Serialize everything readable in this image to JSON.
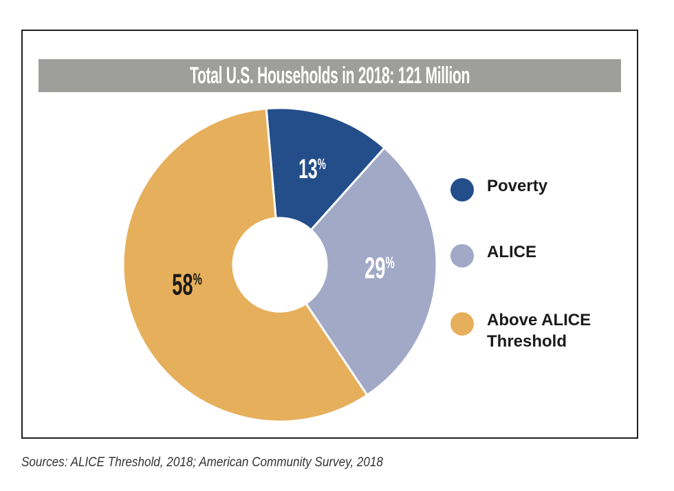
{
  "chart_data": {
    "type": "pie",
    "title": "Total U.S. Households in 2018: 121 Million",
    "donut": true,
    "categories": [
      "Poverty",
      "ALICE",
      "Above ALICE Threshold"
    ],
    "values": [
      13,
      29,
      58
    ],
    "value_labels": [
      "13%",
      "29%",
      "58%"
    ],
    "colors": [
      "#234e8a",
      "#a2a9c7",
      "#e6af5b"
    ],
    "label_colors": [
      "#ffffff",
      "#ffffff",
      "#1a1a1a"
    ],
    "legend": {
      "position": "right",
      "entries": [
        {
          "label": "Poverty",
          "color": "#234e8a"
        },
        {
          "label": "ALICE",
          "color": "#a2a9c7"
        },
        {
          "label": "Above ALICE Threshold",
          "color": "#e6af5b"
        }
      ]
    }
  },
  "source_note": "Sources: ALICE Threshold, 2018; American Community Survey, 2018"
}
